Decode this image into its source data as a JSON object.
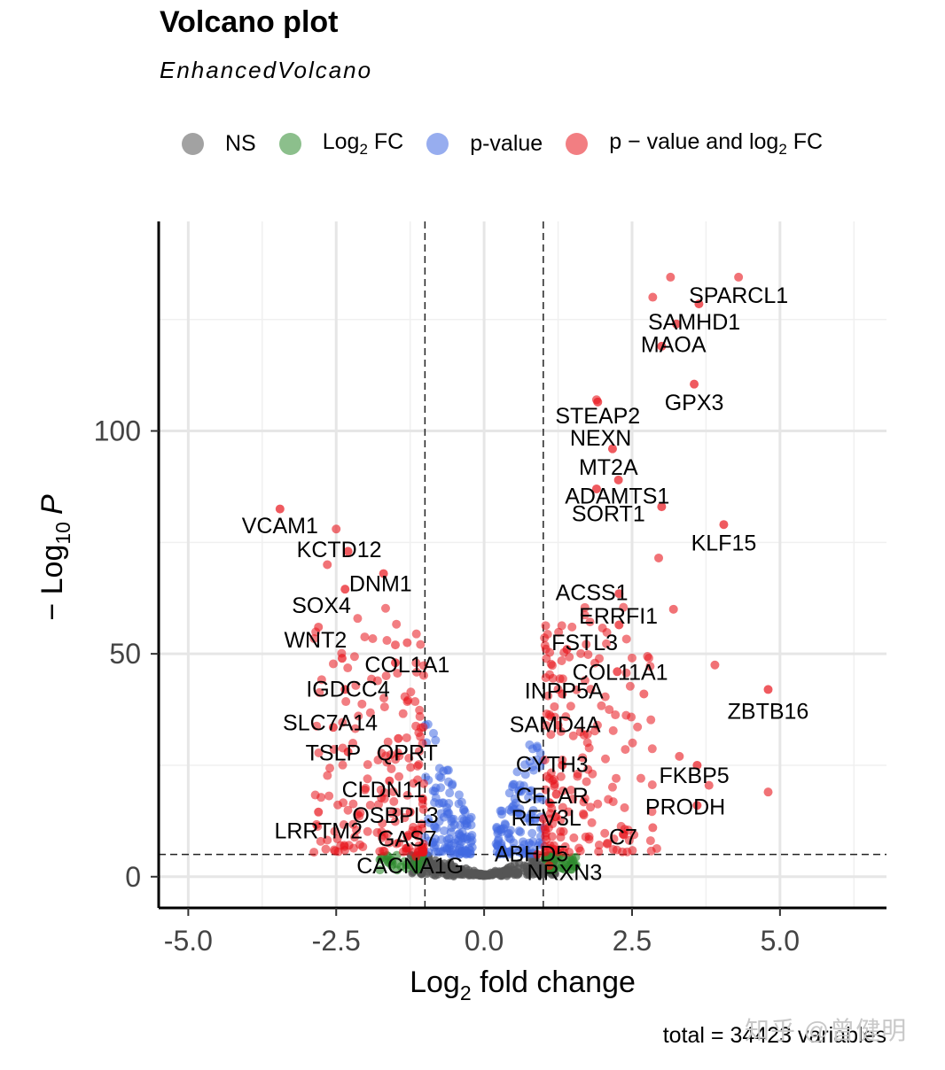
{
  "title": "Volcano plot",
  "subtitle": "EnhancedVolcano",
  "legend": [
    {
      "key": "NS",
      "label": "NS",
      "color": "#555555"
    },
    {
      "key": "FC",
      "label": "Log",
      "sub": "2",
      "label_after": " FC",
      "color": "#2e8b2e"
    },
    {
      "key": "P",
      "label": "p-value",
      "color": "#4169e1"
    },
    {
      "key": "PFC",
      "label": "p − value and log",
      "sub": "2",
      "label_after": " FC",
      "color": "#e8141b"
    }
  ],
  "footer": {
    "total_text": "total = 34423 variables"
  },
  "watermark": "知乎 @曾健明",
  "chart_data": {
    "type": "scatter",
    "title": "Volcano plot",
    "subtitle": "EnhancedVolcano",
    "xlabel": "Log2 fold change",
    "xlabel_parts": {
      "main": "Log",
      "sub": "2",
      "after": " fold change"
    },
    "ylabel": "− Log10 P",
    "ylabel_parts": {
      "pre": "− Log",
      "sub": "10",
      "after": "P"
    },
    "xlim": [
      -5.5,
      6.8
    ],
    "ylim": [
      -7,
      147
    ],
    "x_ticks": [
      -5.0,
      -2.5,
      0.0,
      2.5,
      5.0
    ],
    "x_tick_labels": [
      "-5.0",
      "-2.5",
      "0.0",
      "2.5",
      "5.0"
    ],
    "y_ticks": [
      0,
      50,
      100
    ],
    "y_tick_labels": [
      "0",
      "50",
      "100"
    ],
    "fc_cutoff": 1,
    "p_cutoff_log10": 5,
    "grid": true,
    "legend_position": "top",
    "colors": {
      "NS": "#555555",
      "FC": "#2e8b2e",
      "P": "#4169e1",
      "PFC": "#e8141b"
    },
    "labeled_points": [
      {
        "gene": "SPARCL1",
        "x": 3.63,
        "y": 128.5,
        "lx": 4.3,
        "ly": 130.5
      },
      {
        "gene": "SAMHD1",
        "x": 3.25,
        "y": 124.0,
        "lx": 3.55,
        "ly": 124.5
      },
      {
        "gene": "MAOA",
        "x": 3.0,
        "y": 119.0,
        "lx": 3.2,
        "ly": 119.5
      },
      {
        "gene": "GPX3",
        "x": 3.55,
        "y": 110.5,
        "lx": 3.55,
        "ly": 106.5
      },
      {
        "gene": "STEAP2",
        "x": 1.92,
        "y": 106.5,
        "lx": 1.92,
        "ly": 103.5
      },
      {
        "gene": "NEXN",
        "x": 2.17,
        "y": 96.0,
        "lx": 1.97,
        "ly": 98.5
      },
      {
        "gene": "MT2A",
        "x": 2.27,
        "y": 89.0,
        "lx": 2.1,
        "ly": 92.0
      },
      {
        "gene": "ADAMTS1",
        "x": 1.9,
        "y": 87.0,
        "lx": 2.25,
        "ly": 85.5
      },
      {
        "gene": "SORT1",
        "x": 3.0,
        "y": 83.0,
        "lx": 2.1,
        "ly": 81.5
      },
      {
        "gene": "KLF15",
        "x": 4.05,
        "y": 79.0,
        "lx": 4.05,
        "ly": 75.0
      },
      {
        "gene": "ACSS1",
        "x": 2.28,
        "y": 63.5,
        "lx": 1.82,
        "ly": 63.8
      },
      {
        "gene": "ERRFI1",
        "x": 2.28,
        "y": 56.5,
        "lx": 2.27,
        "ly": 58.6
      },
      {
        "gene": "FSTL3",
        "x": 1.4,
        "y": 51.0,
        "lx": 1.7,
        "ly": 52.6
      },
      {
        "gene": "COL11A1",
        "x": 2.25,
        "y": 46.0,
        "lx": 2.3,
        "ly": 46.0
      },
      {
        "gene": "ZBTB16",
        "x": 4.8,
        "y": 42.0,
        "lx": 4.8,
        "ly": 37.2
      },
      {
        "gene": "INPP5A",
        "x": 1.32,
        "y": 41.0,
        "lx": 1.35,
        "ly": 41.8
      },
      {
        "gene": "SAMD4A",
        "x": 1.25,
        "y": 34.0,
        "lx": 1.2,
        "ly": 34.2
      },
      {
        "gene": "CYTH3",
        "x": 1.32,
        "y": 25.0,
        "lx": 1.15,
        "ly": 25.3
      },
      {
        "gene": "FKBP5",
        "x": 3.6,
        "y": 25.0,
        "lx": 3.55,
        "ly": 22.8
      },
      {
        "gene": "CFLAR",
        "x": 1.22,
        "y": 18.5,
        "lx": 1.15,
        "ly": 18.2
      },
      {
        "gene": "PRODH",
        "x": 3.6,
        "y": 16.0,
        "lx": 3.4,
        "ly": 15.8
      },
      {
        "gene": "REV3L",
        "x": 1.0,
        "y": 13.0,
        "lx": 1.05,
        "ly": 13.3
      },
      {
        "gene": "C7",
        "x": 2.35,
        "y": 9.5,
        "lx": 2.35,
        "ly": 9.0
      },
      {
        "gene": "ABHD5",
        "x": 0.9,
        "y": 5.0,
        "lx": 0.8,
        "ly": 5.2
      },
      {
        "gene": "NRXN3",
        "x": 1.1,
        "y": 2.5,
        "lx": 1.36,
        "ly": 1.0
      },
      {
        "gene": "VCAM1",
        "x": -3.45,
        "y": 82.5,
        "lx": -3.45,
        "ly": 78.8
      },
      {
        "gene": "KCTD12",
        "x": -2.3,
        "y": 73.0,
        "lx": -2.45,
        "ly": 73.5
      },
      {
        "gene": "DNM1",
        "x": -1.7,
        "y": 68.0,
        "lx": -1.75,
        "ly": 65.8
      },
      {
        "gene": "SOX4",
        "x": -2.35,
        "y": 64.5,
        "lx": -2.75,
        "ly": 61.0
      },
      {
        "gene": "WNT2",
        "x": -2.4,
        "y": 49.0,
        "lx": -2.85,
        "ly": 53.2
      },
      {
        "gene": "COL1A1",
        "x": -1.5,
        "y": 48.0,
        "lx": -1.3,
        "ly": 47.6
      },
      {
        "gene": "IGDCC4",
        "x": -2.35,
        "y": 42.0,
        "lx": -2.3,
        "ly": 42.2
      },
      {
        "gene": "SLC7A14",
        "x": -2.55,
        "y": 33.5,
        "lx": -2.6,
        "ly": 34.6
      },
      {
        "gene": "TSLP",
        "x": -2.3,
        "y": 28.0,
        "lx": -2.55,
        "ly": 27.9
      },
      {
        "gene": "QPRT",
        "x": -1.45,
        "y": 31.0,
        "lx": -1.3,
        "ly": 27.9
      },
      {
        "gene": "CLDN11",
        "x": -1.6,
        "y": 21.5,
        "lx": -1.7,
        "ly": 19.6
      },
      {
        "gene": "OSBPL3",
        "x": -1.25,
        "y": 14.5,
        "lx": -1.5,
        "ly": 13.9
      },
      {
        "gene": "LRRTM2",
        "x": -2.8,
        "y": 14.5,
        "lx": -2.8,
        "ly": 10.4
      },
      {
        "gene": "GAS7",
        "x": -1.3,
        "y": 9.0,
        "lx": -1.3,
        "ly": 8.6
      },
      {
        "gene": "CACNA1G",
        "x": -1.15,
        "y": 4.5,
        "lx": -1.25,
        "ly": 2.5
      }
    ],
    "extra_points": [
      {
        "x": 3.15,
        "y": 134.5
      },
      {
        "x": 4.3,
        "y": 134.5
      },
      {
        "x": 2.85,
        "y": 130.0
      },
      {
        "x": 1.9,
        "y": 107.0
      },
      {
        "x": 2.95,
        "y": 71.5
      },
      {
        "x": 3.2,
        "y": 60.0
      },
      {
        "x": 3.9,
        "y": 47.5
      },
      {
        "x": 4.8,
        "y": 19.0
      },
      {
        "x": 2.7,
        "y": 41.0
      },
      {
        "x": 3.8,
        "y": 20.5
      },
      {
        "x": 2.85,
        "y": 11.0
      },
      {
        "x": 3.3,
        "y": 27.0
      },
      {
        "x": -2.5,
        "y": 78.0
      },
      {
        "x": -2.65,
        "y": 70.0
      },
      {
        "x": -2.8,
        "y": 56.0
      },
      {
        "x": -1.5,
        "y": 52.0
      },
      {
        "x": -1.3,
        "y": 52.5
      }
    ]
  }
}
